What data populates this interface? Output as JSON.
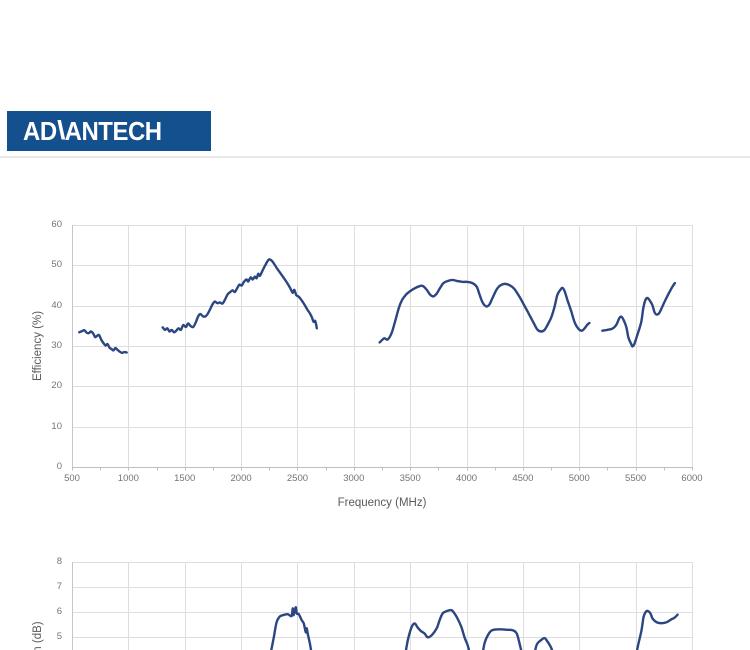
{
  "logo": {
    "prefix": "AD",
    "v_mark": "\\",
    "suffix": "ANTECH",
    "bg_color": "#14508E"
  },
  "divider_color": "#E9E9E9",
  "chart_data": [
    {
      "type": "line",
      "title": "",
      "xlabel": "Frequency (MHz)",
      "ylabel": "Efficiency (%)",
      "xlim": [
        500,
        6000
      ],
      "ylim": [
        0,
        60
      ],
      "xticks": [
        500,
        1000,
        1500,
        2000,
        2500,
        3000,
        3500,
        4000,
        4500,
        5000,
        5500,
        6000
      ],
      "yticks": [
        0,
        10,
        20,
        30,
        40,
        50,
        60
      ],
      "grid": true,
      "legend": false,
      "line_color": "#2B4680",
      "segments": [
        [
          [
            565,
            33.4
          ],
          [
            590,
            33.7
          ],
          [
            610,
            33.9
          ],
          [
            630,
            33.3
          ],
          [
            650,
            33.2
          ],
          [
            668,
            33.6
          ],
          [
            688,
            33.1
          ],
          [
            705,
            32.2
          ],
          [
            722,
            32.5
          ],
          [
            740,
            32.7
          ],
          [
            760,
            31.5
          ],
          [
            780,
            30.7
          ],
          [
            798,
            30.1
          ],
          [
            815,
            30.5
          ],
          [
            833,
            29.6
          ],
          [
            852,
            29.2
          ],
          [
            868,
            28.9
          ],
          [
            884,
            29.5
          ],
          [
            902,
            29.1
          ],
          [
            922,
            28.6
          ],
          [
            945,
            28.3
          ],
          [
            965,
            28.5
          ],
          [
            985,
            28.4
          ]
        ],
        [
          [
            1305,
            34.6
          ],
          [
            1325,
            34.0
          ],
          [
            1345,
            34.4
          ],
          [
            1365,
            33.6
          ],
          [
            1385,
            34.0
          ],
          [
            1405,
            33.4
          ],
          [
            1425,
            33.8
          ],
          [
            1445,
            34.4
          ],
          [
            1465,
            34.0
          ],
          [
            1487,
            35.2
          ],
          [
            1510,
            34.7
          ],
          [
            1530,
            35.6
          ],
          [
            1550,
            35.0
          ],
          [
            1575,
            34.7
          ],
          [
            1600,
            36.0
          ],
          [
            1620,
            37.4
          ],
          [
            1640,
            37.9
          ],
          [
            1660,
            37.4
          ],
          [
            1680,
            37.3
          ],
          [
            1700,
            37.8
          ],
          [
            1725,
            39.1
          ],
          [
            1748,
            40.4
          ],
          [
            1768,
            41.0
          ],
          [
            1790,
            40.6
          ],
          [
            1812,
            40.8
          ],
          [
            1835,
            40.5
          ],
          [
            1857,
            41.5
          ],
          [
            1880,
            42.8
          ],
          [
            1900,
            43.3
          ],
          [
            1925,
            43.8
          ],
          [
            1945,
            43.4
          ],
          [
            1965,
            44.3
          ],
          [
            1985,
            45.2
          ],
          [
            2005,
            45.0
          ],
          [
            2025,
            45.9
          ],
          [
            2048,
            46.5
          ],
          [
            2063,
            46.0
          ],
          [
            2085,
            47.0
          ],
          [
            2103,
            46.5
          ],
          [
            2122,
            47.2
          ],
          [
            2138,
            46.8
          ],
          [
            2152,
            47.9
          ],
          [
            2167,
            47.4
          ],
          [
            2190,
            48.7
          ],
          [
            2210,
            49.8
          ],
          [
            2232,
            50.9
          ],
          [
            2250,
            51.5
          ],
          [
            2270,
            51.2
          ],
          [
            2292,
            50.4
          ],
          [
            2315,
            49.4
          ],
          [
            2345,
            48.2
          ],
          [
            2375,
            47.0
          ],
          [
            2405,
            45.8
          ],
          [
            2435,
            44.4
          ],
          [
            2458,
            43.2
          ],
          [
            2472,
            43.9
          ],
          [
            2490,
            42.6
          ],
          [
            2512,
            42.2
          ],
          [
            2535,
            41.4
          ],
          [
            2562,
            40.3
          ],
          [
            2588,
            39.0
          ],
          [
            2608,
            38.2
          ],
          [
            2628,
            37.1
          ],
          [
            2643,
            36.0
          ],
          [
            2657,
            36.2
          ],
          [
            2672,
            34.4
          ]
        ],
        [
          [
            3230,
            30.9
          ],
          [
            3270,
            31.9
          ],
          [
            3300,
            31.6
          ],
          [
            3335,
            33.2
          ],
          [
            3365,
            36.0
          ],
          [
            3400,
            39.5
          ],
          [
            3430,
            41.5
          ],
          [
            3465,
            42.8
          ],
          [
            3500,
            43.6
          ],
          [
            3540,
            44.3
          ],
          [
            3580,
            44.8
          ],
          [
            3610,
            44.9
          ],
          [
            3645,
            44.0
          ],
          [
            3675,
            42.8
          ],
          [
            3705,
            42.3
          ],
          [
            3735,
            43.0
          ],
          [
            3765,
            44.4
          ],
          [
            3795,
            45.6
          ],
          [
            3830,
            46.1
          ],
          [
            3875,
            46.4
          ],
          [
            3920,
            46.1
          ],
          [
            3965,
            45.9
          ],
          [
            4010,
            45.9
          ],
          [
            4052,
            45.6
          ],
          [
            4090,
            44.7
          ],
          [
            4115,
            42.8
          ],
          [
            4142,
            40.8
          ],
          [
            4178,
            39.8
          ],
          [
            4205,
            40.4
          ],
          [
            4230,
            41.9
          ],
          [
            4265,
            43.9
          ],
          [
            4293,
            44.9
          ],
          [
            4335,
            45.4
          ],
          [
            4380,
            45.1
          ],
          [
            4425,
            44.1
          ],
          [
            4470,
            42.2
          ],
          [
            4515,
            39.9
          ],
          [
            4558,
            37.7
          ],
          [
            4603,
            35.3
          ],
          [
            4630,
            34.0
          ],
          [
            4665,
            33.6
          ],
          [
            4692,
            34.0
          ],
          [
            4718,
            35.2
          ],
          [
            4753,
            37.2
          ],
          [
            4780,
            39.7
          ],
          [
            4806,
            42.7
          ],
          [
            4832,
            43.9
          ],
          [
            4850,
            44.4
          ],
          [
            4870,
            43.6
          ],
          [
            4895,
            41.4
          ],
          [
            4930,
            38.5
          ],
          [
            4956,
            36.1
          ],
          [
            4983,
            34.6
          ],
          [
            5018,
            33.8
          ],
          [
            5045,
            34.3
          ],
          [
            5072,
            35.3
          ],
          [
            5090,
            35.7
          ]
        ],
        [
          [
            5205,
            33.8
          ],
          [
            5248,
            34.0
          ],
          [
            5293,
            34.3
          ],
          [
            5328,
            35.2
          ],
          [
            5355,
            36.9
          ],
          [
            5374,
            37.3
          ],
          [
            5392,
            36.5
          ],
          [
            5418,
            34.6
          ],
          [
            5436,
            32.1
          ],
          [
            5462,
            30.4
          ],
          [
            5472,
            29.9
          ],
          [
            5490,
            30.6
          ],
          [
            5516,
            32.8
          ],
          [
            5550,
            36.0
          ],
          [
            5568,
            39.4
          ],
          [
            5587,
            41.4
          ],
          [
            5605,
            41.9
          ],
          [
            5622,
            41.4
          ],
          [
            5648,
            40.2
          ],
          [
            5666,
            38.5
          ],
          [
            5684,
            37.8
          ],
          [
            5710,
            38.2
          ],
          [
            5737,
            39.8
          ],
          [
            5773,
            41.9
          ],
          [
            5800,
            43.4
          ],
          [
            5826,
            44.7
          ],
          [
            5848,
            45.6
          ]
        ]
      ]
    },
    {
      "type": "line",
      "title": "",
      "ylabel": "Gain (dB)",
      "xlim": [
        500,
        6000
      ],
      "yticks": [
        8,
        7,
        6,
        5
      ],
      "grid": true,
      "legend": false,
      "line_color": "#2B4680",
      "segments": [
        [
          [
            2255,
            4.2
          ],
          [
            2290,
            5.0
          ],
          [
            2315,
            5.6
          ],
          [
            2342,
            5.82
          ],
          [
            2370,
            5.88
          ],
          [
            2413,
            5.92
          ],
          [
            2448,
            5.85
          ],
          [
            2458,
            6.15
          ],
          [
            2466,
            5.88
          ],
          [
            2484,
            6.2
          ],
          [
            2494,
            5.95
          ],
          [
            2512,
            5.92
          ],
          [
            2538,
            5.68
          ],
          [
            2556,
            5.55
          ],
          [
            2574,
            5.2
          ],
          [
            2582,
            5.36
          ],
          [
            2591,
            5.15
          ],
          [
            2610,
            4.75
          ],
          [
            2632,
            4.2
          ]
        ],
        [
          [
            3452,
            4.2
          ],
          [
            3480,
            4.9
          ],
          [
            3512,
            5.4
          ],
          [
            3540,
            5.55
          ],
          [
            3565,
            5.4
          ],
          [
            3595,
            5.25
          ],
          [
            3628,
            5.15
          ],
          [
            3655,
            5.0
          ],
          [
            3690,
            5.08
          ],
          [
            3735,
            5.36
          ],
          [
            3760,
            5.67
          ],
          [
            3788,
            5.95
          ],
          [
            3822,
            6.04
          ],
          [
            3866,
            6.08
          ],
          [
            3893,
            5.95
          ],
          [
            3920,
            5.75
          ],
          [
            3955,
            5.4
          ],
          [
            3982,
            5.0
          ],
          [
            4010,
            4.68
          ],
          [
            4038,
            4.2
          ]
        ],
        [
          [
            4138,
            4.2
          ],
          [
            4162,
            4.8
          ],
          [
            4205,
            5.2
          ],
          [
            4240,
            5.3
          ],
          [
            4300,
            5.32
          ],
          [
            4360,
            5.3
          ],
          [
            4410,
            5.28
          ],
          [
            4445,
            5.15
          ],
          [
            4470,
            4.76
          ],
          [
            4498,
            4.2
          ]
        ],
        [
          [
            4598,
            4.2
          ],
          [
            4622,
            4.7
          ],
          [
            4665,
            4.9
          ],
          [
            4692,
            4.97
          ],
          [
            4718,
            4.83
          ],
          [
            4752,
            4.57
          ],
          [
            4778,
            4.2
          ]
        ],
        [
          [
            5502,
            4.2
          ],
          [
            5520,
            4.65
          ],
          [
            5552,
            5.28
          ],
          [
            5570,
            5.8
          ],
          [
            5588,
            6.0
          ],
          [
            5606,
            6.05
          ],
          [
            5632,
            5.95
          ],
          [
            5650,
            5.75
          ],
          [
            5685,
            5.6
          ],
          [
            5730,
            5.56
          ],
          [
            5775,
            5.6
          ],
          [
            5818,
            5.72
          ],
          [
            5845,
            5.78
          ],
          [
            5872,
            5.9
          ]
        ]
      ]
    }
  ]
}
